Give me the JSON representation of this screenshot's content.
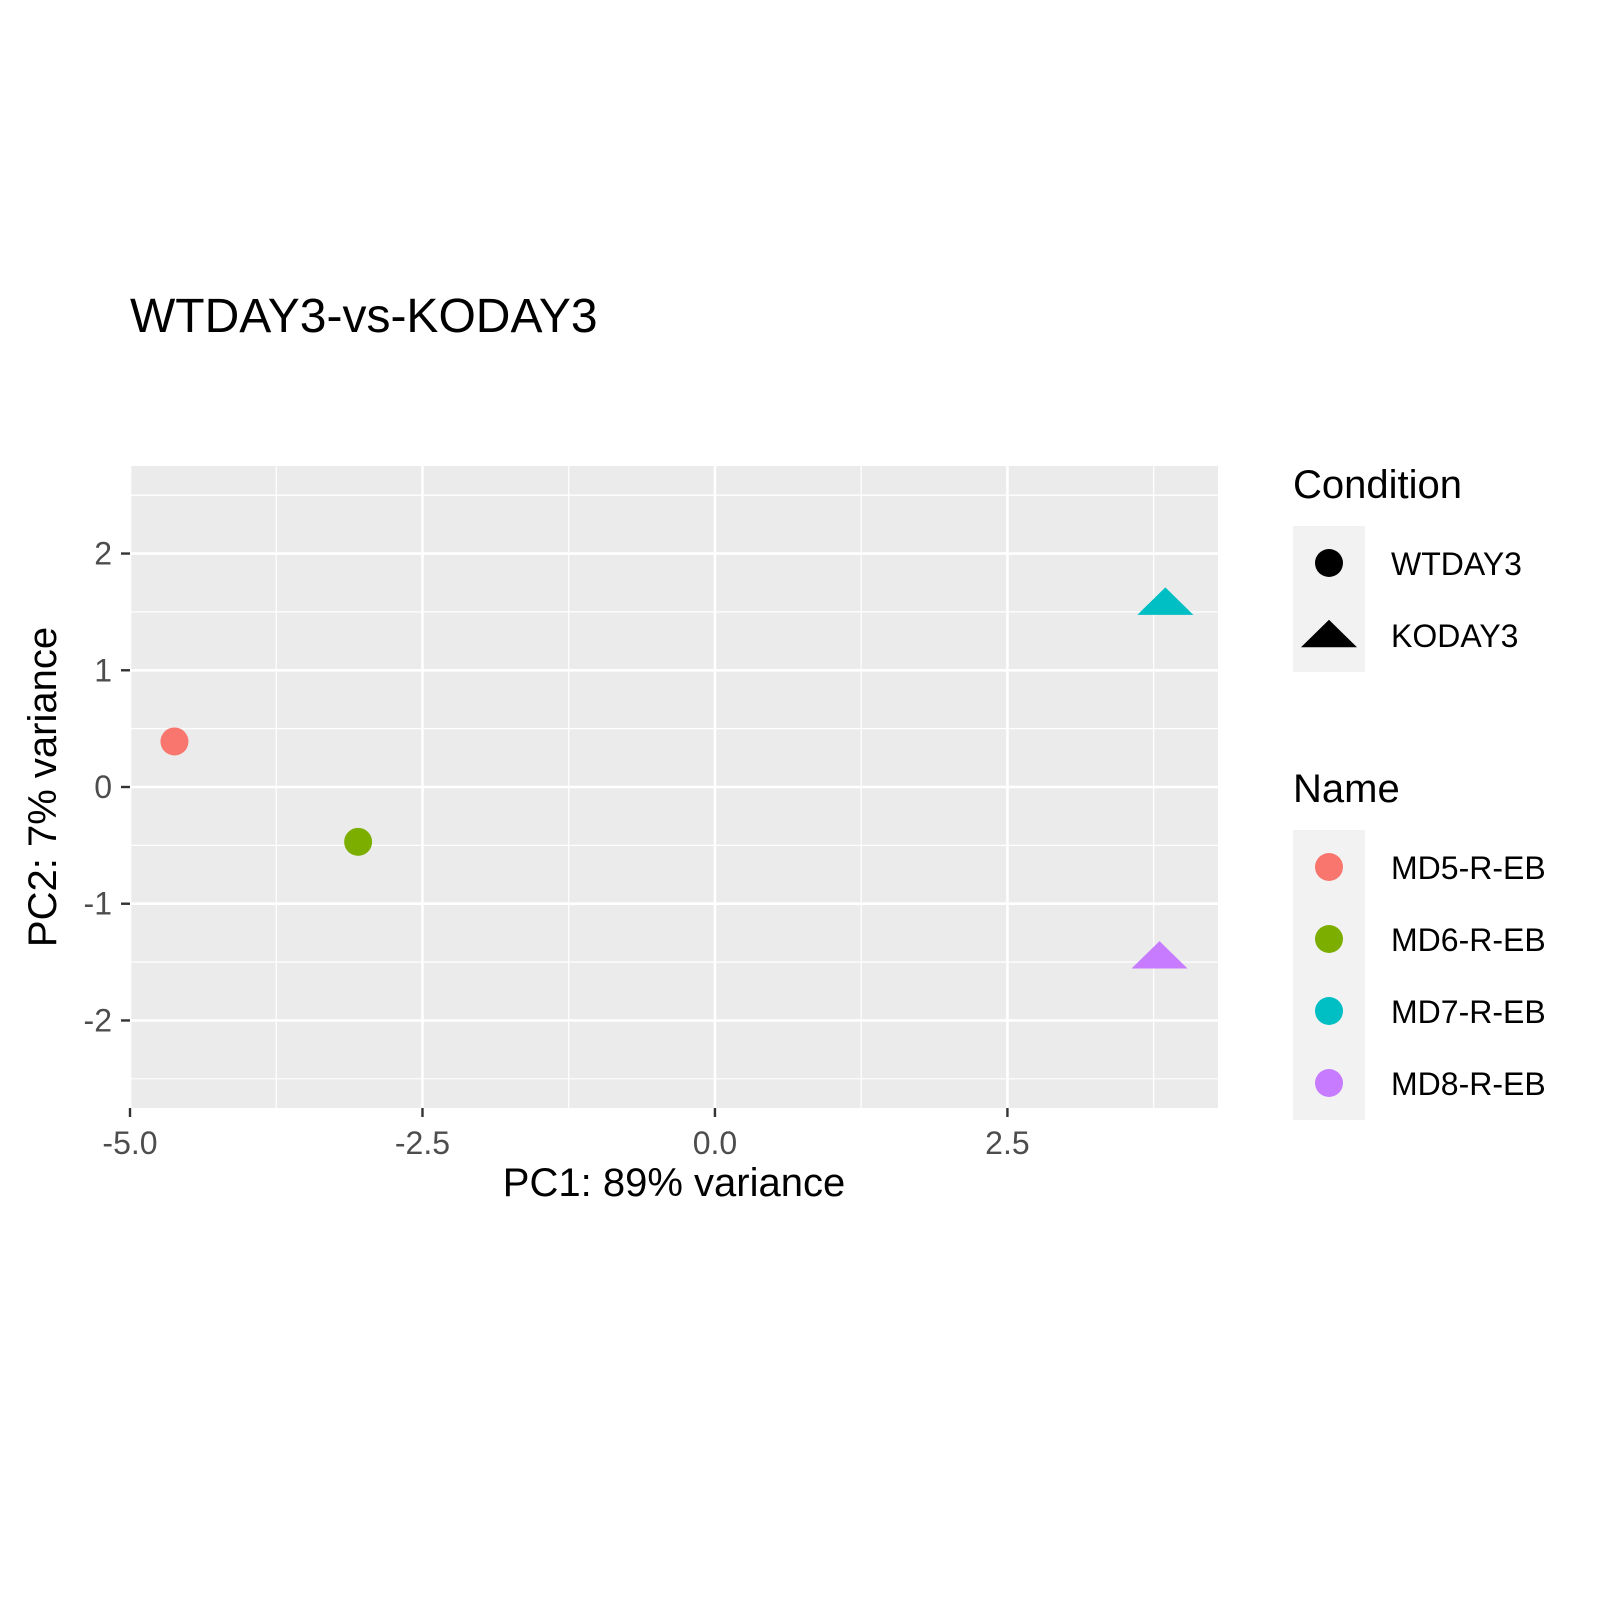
{
  "chart_data": {
    "type": "scatter",
    "title": "WTDAY3-vs-KODAY3",
    "xlabel": "PC1: 89% variance",
    "ylabel": "PC2: 7% variance",
    "xlim": [
      -5.0,
      4.3
    ],
    "ylim": [
      -2.75,
      2.75
    ],
    "x_ticks": [
      -5.0,
      -2.5,
      0.0,
      2.5
    ],
    "x_tick_labels": [
      "-5.0",
      "-2.5",
      "0.0",
      "2.5"
    ],
    "y_ticks": [
      -2,
      -1,
      0,
      1,
      2
    ],
    "y_tick_labels": [
      "-2",
      "-1",
      "0",
      "1",
      "2"
    ],
    "grid": true,
    "panel_background": "#EBEBEB",
    "points": [
      {
        "name": "MD5-R-EB",
        "condition": "WTDAY3",
        "x": -4.62,
        "y": 0.39
      },
      {
        "name": "MD6-R-EB",
        "condition": "WTDAY3",
        "x": -3.05,
        "y": -0.47
      },
      {
        "name": "MD7-R-EB",
        "condition": "KODAY3",
        "x": 3.85,
        "y": 1.58
      },
      {
        "name": "MD8-R-EB",
        "condition": "KODAY3",
        "x": 3.8,
        "y": -1.45
      }
    ],
    "legend": {
      "placement": "right",
      "condition": {
        "title": "Condition",
        "items": [
          {
            "label": "WTDAY3",
            "shape": "circle"
          },
          {
            "label": "KODAY3",
            "shape": "triangle"
          }
        ]
      },
      "name": {
        "title": "Name",
        "items": [
          {
            "label": "MD5-R-EB",
            "color": "#F8766D"
          },
          {
            "label": "MD6-R-EB",
            "color": "#7CAE00"
          },
          {
            "label": "MD7-R-EB",
            "color": "#00BFC4"
          },
          {
            "label": "MD8-R-EB",
            "color": "#C77CFF"
          }
        ]
      }
    }
  }
}
